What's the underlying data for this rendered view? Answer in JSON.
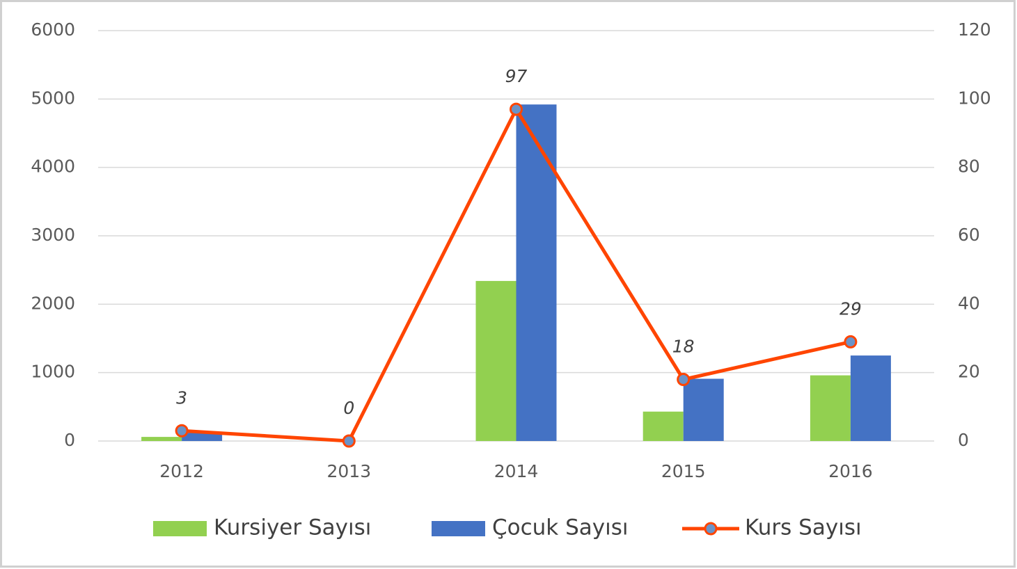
{
  "chart_data": {
    "type": "bar",
    "categories": [
      "2012",
      "2013",
      "2014",
      "2015",
      "2016"
    ],
    "series": [
      {
        "name": "Kursiyer Sayısı",
        "type": "bar",
        "color": "#92d050",
        "values": [
          60,
          0,
          2340,
          430,
          960
        ]
      },
      {
        "name": "Çocuk Sayısı",
        "type": "bar",
        "color": "#4472c4",
        "values": [
          120,
          0,
          4920,
          910,
          1250
        ]
      },
      {
        "name": "Kurs Sayısı",
        "type": "line",
        "axis": "y2",
        "color": "#ff4500",
        "marker_color": "#6b93c8",
        "data_labels": true,
        "values": [
          3,
          0,
          97,
          18,
          29
        ]
      }
    ],
    "ylim": [
      0,
      6000
    ],
    "yticks": [
      0,
      1000,
      2000,
      3000,
      4000,
      5000,
      6000
    ],
    "y2lim": [
      0,
      120
    ],
    "y2ticks": [
      0,
      20,
      40,
      60,
      80,
      100,
      120
    ],
    "grid": true,
    "legend": "bottom"
  }
}
